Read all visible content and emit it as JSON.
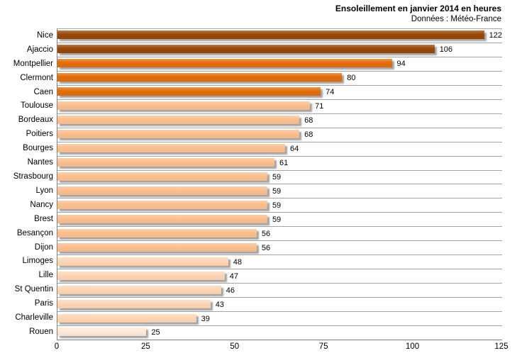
{
  "header": {
    "title": "Ensoleillement en janvier 2014 en heures",
    "subtitle": "Données : Météo-France"
  },
  "chart_data": {
    "type": "bar",
    "orientation": "horizontal",
    "title": "Ensoleillement en janvier 2014 en heures",
    "subtitle": "Données : Météo-France",
    "xlabel": "",
    "ylabel": "",
    "xlim": [
      0,
      125
    ],
    "x_ticks": [
      0,
      25,
      50,
      75,
      100,
      125
    ],
    "grid": "row-separator-lines",
    "legend": "none",
    "data_labels": true,
    "categories": [
      "Nice",
      "Ajaccio",
      "Montpellier",
      "Clermont",
      "Caen",
      "Toulouse",
      "Bordeaux",
      "Poitiers",
      "Bourges",
      "Nantes",
      "Strasbourg",
      "Lyon",
      "Nancy",
      "Brest",
      "Besançon",
      "Dijon",
      "Limoges",
      "Lille",
      "St Quentin",
      "Paris",
      "Charleville",
      "Rouen"
    ],
    "values": [
      122,
      106,
      94,
      80,
      74,
      71,
      68,
      68,
      64,
      61,
      59,
      59,
      59,
      59,
      56,
      56,
      48,
      47,
      46,
      43,
      39,
      25
    ],
    "bar_colors": [
      "#984807",
      "#984807",
      "#E36C0A",
      "#E36C0A",
      "#E36C0A",
      "#FABF8F",
      "#FABF8F",
      "#FABF8F",
      "#FABF8F",
      "#FABF8F",
      "#FABF8F",
      "#FABF8F",
      "#FABF8F",
      "#FABF8F",
      "#FABF8F",
      "#FABF8F",
      "#FCD5B4",
      "#FCD5B4",
      "#FCD5B4",
      "#FCD5B4",
      "#FCD5B4",
      "#FDE9D9"
    ],
    "palette": {
      "dark_brown": "#984807",
      "orange": "#E36C0A",
      "peach": "#FABF8F",
      "light_peach": "#FCD5B4",
      "pale_peach": "#FDE9D9",
      "gridline": "#A6A6A6",
      "axis": "#808080"
    }
  }
}
